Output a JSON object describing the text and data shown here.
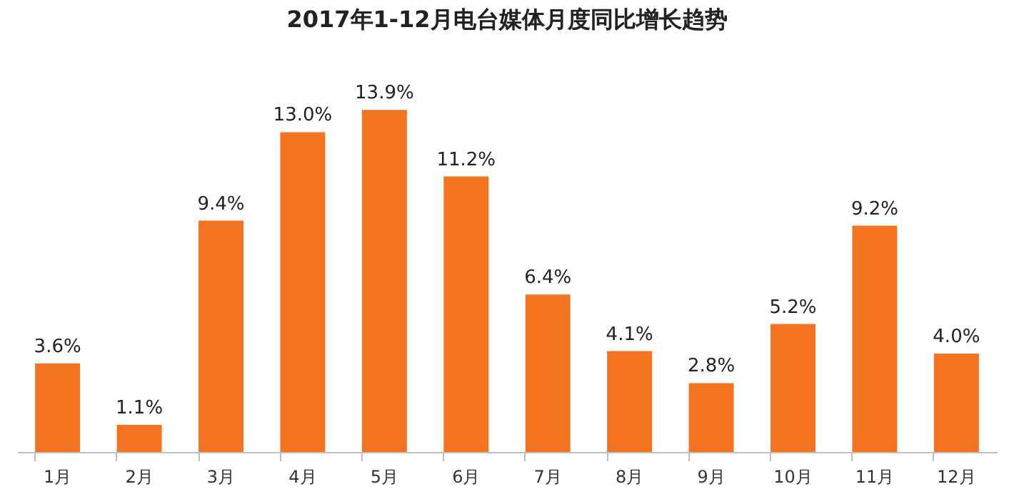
{
  "chart_data": {
    "type": "bar",
    "title": "2017年1-12月电台媒体月度同比增长趋势",
    "categories": [
      "1月",
      "2月",
      "3月",
      "4月",
      "5月",
      "6月",
      "7月",
      "8月",
      "9月",
      "10月",
      "11月",
      "12月"
    ],
    "values": [
      3.6,
      1.1,
      9.4,
      13.0,
      13.9,
      11.2,
      6.4,
      4.1,
      2.8,
      5.2,
      9.2,
      4.0
    ],
    "value_labels": [
      "3.6%",
      "1.1%",
      "9.4%",
      "13.0%",
      "13.9%",
      "11.2%",
      "6.4%",
      "4.1%",
      "2.8%",
      "5.2%",
      "9.2%",
      "4.0%"
    ],
    "color": "#f47321",
    "grid": false,
    "tick_labels": "x"
  }
}
